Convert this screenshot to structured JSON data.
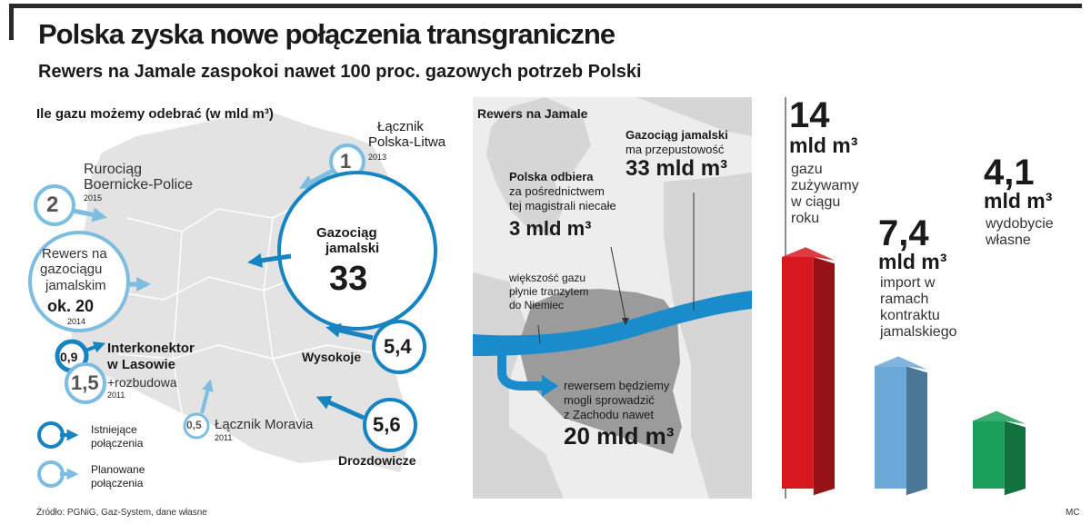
{
  "title": "Polska zyska nowe połączenia transgraniczne",
  "subtitle": "Rewers na Jamale zaspokoi nawet 100 proc. gazowych potrzeb Polski",
  "left_panel": {
    "heading": "Ile gazu możemy odebrać (w mld m³)",
    "connections": [
      {
        "value": "1",
        "name_l1": "Łącznik",
        "name_l2": "Polska-Litwa",
        "year": "2013",
        "status": "planned"
      },
      {
        "value": "2",
        "name_l1": "Rurociąg",
        "name_l2": "Boernicke-Police",
        "year": "2015",
        "status": "planned"
      },
      {
        "value": "ok. 20",
        "name_l1": "Rewers na",
        "name_l2": "gazociągu",
        "name_l3": "jamalskim",
        "year": "2014",
        "status": "planned"
      },
      {
        "value": "33",
        "name_l1": "Gazociąg",
        "name_l2": "jamalski",
        "status": "existing"
      },
      {
        "value": "5,4",
        "name_l1": "Wysokoje",
        "status": "existing"
      },
      {
        "value": "0,9",
        "status": "existing"
      },
      {
        "value": "1,5",
        "name_l1": "Interkonektor",
        "name_l2": "w Lasowie",
        "extra": "+rozbudowa",
        "year": "2011",
        "status": "planned"
      },
      {
        "value": "0,5",
        "name_l1": "Łącznik Moravia",
        "year": "2011",
        "status": "planned"
      },
      {
        "value": "5,6",
        "name_l1": "Drozdowicze",
        "status": "existing"
      }
    ],
    "legend": {
      "existing_l1": "Istniejące",
      "existing_l2": "połączenia",
      "planned_l1": "Planowane",
      "planned_l2": "połączenia"
    },
    "colors": {
      "existing": "#1783c0",
      "planned": "#7dbde0",
      "land": "#e3e3e3"
    }
  },
  "middle_panel": {
    "heading": "Rewers na Jamale",
    "pipeline_l1": "Gazociąg jamalski",
    "pipeline_l2": "ma przepustowość",
    "pipeline_value": "33 mld m³",
    "poland_l1": "Polska odbiera",
    "poland_l2": "za pośrednictwem",
    "poland_l3": "tej magistrali niecałe",
    "poland_value": "3 mld m³",
    "transit_l1": "większość gazu",
    "transit_l2": "płynie tranzytem",
    "transit_l3": "do Niemiec",
    "reverse_l1": "rewersem będziemy",
    "reverse_l2": "mogli sprowadzić",
    "reverse_l3": "z Zachodu nawet",
    "reverse_value": "20 mld m³",
    "colors": {
      "pipe": "#1a8ccc",
      "poland": "#9b9b9b",
      "sea": "#ededed",
      "land": "#d0d0d0"
    }
  },
  "chart_data": {
    "type": "bar",
    "categories": [
      "gazu zużywamy w ciągu roku",
      "import w ramach kontraktu jamalskiego",
      "wydobycie własne"
    ],
    "values": [
      14,
      7.4,
      4.1
    ],
    "value_labels": [
      "14",
      "7,4",
      "4,1"
    ],
    "unit": "mld m³",
    "desc": [
      [
        "gazu",
        "zużywamy",
        "w ciągu",
        "roku"
      ],
      [
        "import w",
        "ramach",
        "kontraktu",
        "jamalskiego"
      ],
      [
        "wydobycie",
        "własne"
      ]
    ],
    "colors": [
      "#d7191f",
      "#6aa9d8",
      "#1aa05a"
    ],
    "title": "",
    "xlabel": "",
    "ylabel": ""
  },
  "source": "Źródło: PGNiG, Gaz-System, dane własne",
  "credit": "MC"
}
